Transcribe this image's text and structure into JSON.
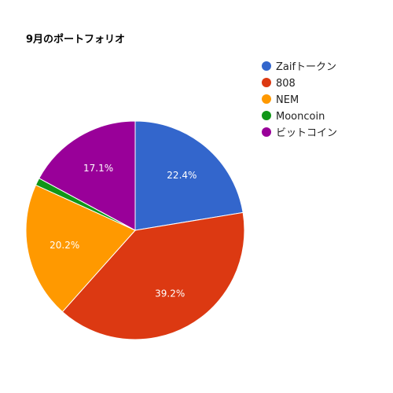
{
  "chart_data": {
    "type": "pie",
    "title": "9月のポートフォリオ",
    "legend_position": "right",
    "slices": [
      {
        "name": "Zaifトークン",
        "value": 22.4,
        "label": "22.4%",
        "color": "#3366cc"
      },
      {
        "name": "808",
        "value": 39.2,
        "label": "39.2%",
        "color": "#dc3912"
      },
      {
        "name": "NEM",
        "value": 20.2,
        "label": "20.2%",
        "color": "#ff9900"
      },
      {
        "name": "Mooncoin",
        "value": 1.1,
        "label": "",
        "color": "#109618"
      },
      {
        "name": "ビットコイン",
        "value": 17.1,
        "label": "17.1%",
        "color": "#990099"
      }
    ]
  }
}
